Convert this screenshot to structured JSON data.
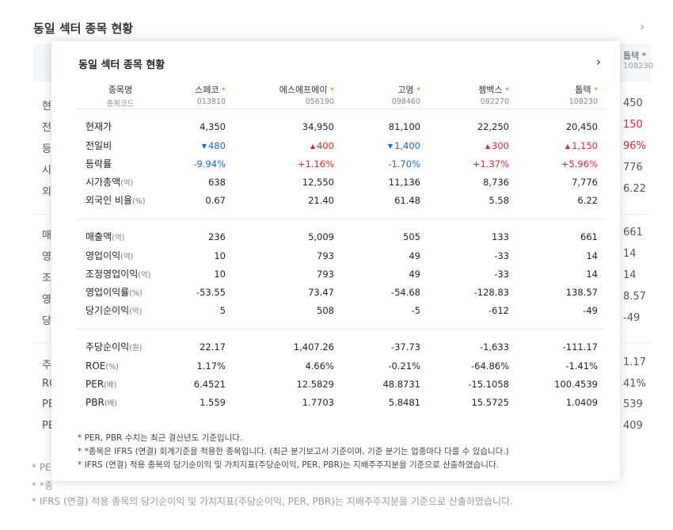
{
  "background": {
    "title": "동일 섹터 종목 현황",
    "header_name": "톱텍 *",
    "header_code": "108230",
    "labels": [
      "현",
      "전",
      "등",
      "시",
      "외",
      "매",
      "영",
      "조",
      "영",
      "당",
      "주",
      "RO",
      "PE",
      "PE"
    ],
    "values": [
      "450",
      "150",
      "96%",
      "776",
      "6.22",
      "661",
      "14",
      "14",
      "8.57",
      "-49",
      "1.17",
      "41%",
      "539",
      "409"
    ],
    "notes": [
      "* PE",
      "* *종",
      "* IFRS (연결) 적용 종목의 당기순이익 및 가치지표(주당순이익, PER, PBR)는 지배주주지분을 기준으로 산출하였습니다."
    ]
  },
  "popup": {
    "title": "동일 섹터 종목 현황",
    "header": {
      "name_label": "종목명",
      "code_label": "종목코드",
      "stocks": [
        {
          "name": "스페코",
          "star": "*",
          "code": "013810"
        },
        {
          "name": "에스에프에이",
          "star": "*",
          "code": "056190"
        },
        {
          "name": "고영",
          "star": "*",
          "code": "098460"
        },
        {
          "name": "젬백스",
          "star": "*",
          "code": "082270"
        },
        {
          "name": "톱텍",
          "star": "*",
          "code": "108230"
        }
      ]
    },
    "rows": [
      {
        "label": "현재가",
        "unit": "",
        "values": [
          "4,350",
          "34,950",
          "81,100",
          "22,250",
          "20,450"
        ],
        "dirs": [
          "",
          "",
          "",
          "",
          ""
        ]
      },
      {
        "label": "전일비",
        "unit": "",
        "values": [
          "480",
          "400",
          "1,400",
          "300",
          "1,150"
        ],
        "dirs": [
          "down",
          "up",
          "down",
          "up",
          "up"
        ]
      },
      {
        "label": "등락률",
        "unit": "",
        "values": [
          "-9.94%",
          "+1.16%",
          "-1.70%",
          "+1.37%",
          "+5.96%"
        ],
        "dirs": [
          "down",
          "up",
          "down",
          "up",
          "up"
        ]
      },
      {
        "label": "시가총액",
        "unit": "(억)",
        "values": [
          "638",
          "12,550",
          "11,136",
          "8,736",
          "7,776"
        ],
        "dirs": [
          "",
          "",
          "",
          "",
          ""
        ]
      },
      {
        "label": "외국인 비율",
        "unit": "(%)",
        "values": [
          "0.67",
          "21.40",
          "61.48",
          "5.58",
          "6.22"
        ],
        "dirs": [
          "",
          "",
          "",
          "",
          ""
        ]
      },
      {
        "label": "매출액",
        "unit": "(억)",
        "values": [
          "236",
          "5,009",
          "505",
          "133",
          "661"
        ],
        "dirs": [
          "",
          "",
          "",
          "",
          ""
        ]
      },
      {
        "label": "영업이익",
        "unit": "(억)",
        "values": [
          "10",
          "793",
          "49",
          "-33",
          "14"
        ],
        "dirs": [
          "",
          "",
          "",
          "",
          ""
        ]
      },
      {
        "label": "조정영업이익",
        "unit": "(억)",
        "values": [
          "10",
          "793",
          "49",
          "-33",
          "14"
        ],
        "dirs": [
          "",
          "",
          "",
          "",
          ""
        ]
      },
      {
        "label": "영업이익률",
        "unit": "(%)",
        "values": [
          "-53.55",
          "73.47",
          "-54.68",
          "-128.83",
          "138.57"
        ],
        "dirs": [
          "",
          "",
          "",
          "",
          ""
        ]
      },
      {
        "label": "당기순이익",
        "unit": "(억)",
        "values": [
          "5",
          "508",
          "-5",
          "-612",
          "-49"
        ],
        "dirs": [
          "",
          "",
          "",
          "",
          ""
        ]
      },
      {
        "label": "주당순이익",
        "unit": "(원)",
        "values": [
          "22.17",
          "1,407.26",
          "-37.73",
          "-1,633",
          "-111.17"
        ],
        "dirs": [
          "",
          "",
          "",
          "",
          ""
        ]
      },
      {
        "label": "ROE",
        "unit": "(%)",
        "values": [
          "1.17%",
          "4.66%",
          "-0.21%",
          "-64.86%",
          "-1.41%"
        ],
        "dirs": [
          "",
          "",
          "",
          "",
          ""
        ]
      },
      {
        "label": "PER",
        "unit": "(배)",
        "values": [
          "6.4521",
          "12.5829",
          "48.8731",
          "-15.1058",
          "100.4539"
        ],
        "dirs": [
          "",
          "",
          "",
          "",
          ""
        ]
      },
      {
        "label": "PBR",
        "unit": "(배)",
        "values": [
          "1.559",
          "1.7703",
          "5.8481",
          "15.5725",
          "1.0409"
        ],
        "dirs": [
          "",
          "",
          "",
          "",
          ""
        ]
      }
    ],
    "notes": [
      "* PER, PBR 수치는 최근 결산년도 기준입니다.",
      "* *종목은 IFRS (연결) 회계기준을 적용한 종목입니다. (최근 분기보고서 기준이며, 기준 분기는 업종마다 다를 수 있습니다.)",
      "* IFRS (연결) 적용 종목의 당기순이익 및 가치지표(주당순이익, PER, PBR)는 지배주주지분을 기준으로 산출하였습니다."
    ]
  },
  "colors": {
    "up": "#e1262b",
    "down": "#1f60d6",
    "star": "#f26522"
  },
  "icons": {
    "chevron": "chevron-right-icon",
    "up": "triangle-up-icon",
    "down": "triangle-down-icon"
  }
}
